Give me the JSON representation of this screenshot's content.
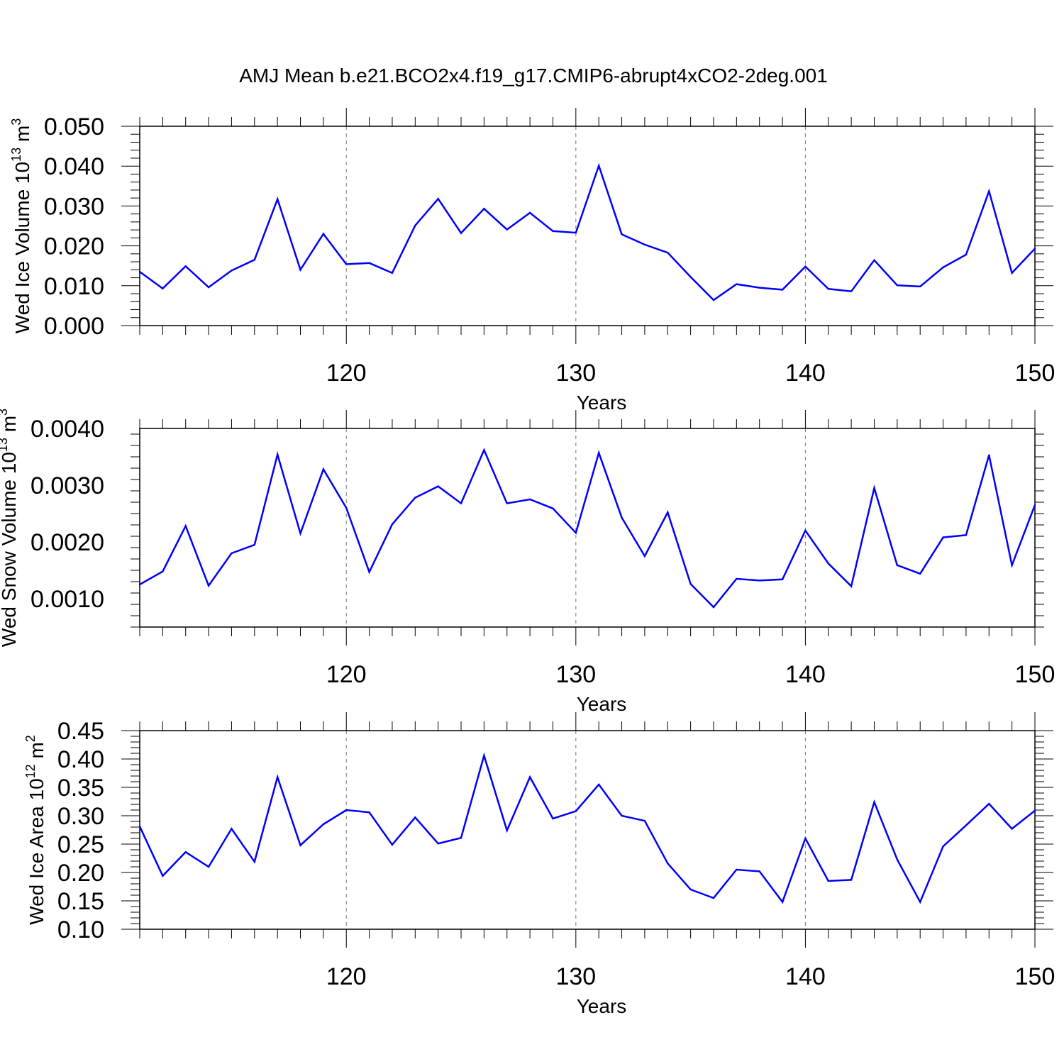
{
  "title": "AMJ Mean b.e21.BCO2x4.f19_g17.CMIP6-abrupt4xCO2-2deg.001",
  "chart_data": [
    {
      "type": "line",
      "title": "",
      "xlabel": "Years",
      "ylabel": {
        "main": "Wed Ice Volume 10",
        "exponent": "13",
        "unit": " m",
        "unit_exponent": "3"
      },
      "xlim": [
        111,
        150
      ],
      "ylim": [
        0.0,
        0.05
      ],
      "x_ticks": [
        "120",
        "130",
        "140",
        "150"
      ],
      "y_ticks": [
        "0.000",
        "0.010",
        "0.020",
        "0.030",
        "0.040",
        "0.050"
      ],
      "grid": "vertical dashed at major x ticks",
      "color": "#0000ff",
      "x": [
        111,
        112,
        113,
        114,
        115,
        116,
        117,
        118,
        119,
        120,
        121,
        122,
        123,
        124,
        125,
        126,
        127,
        128,
        129,
        130,
        131,
        132,
        133,
        134,
        135,
        136,
        137,
        138,
        139,
        140,
        141,
        142,
        143,
        144,
        145,
        146,
        147,
        148,
        149,
        150
      ],
      "values": [
        0.0135,
        0.0093,
        0.0149,
        0.0096,
        0.0138,
        0.0165,
        0.0317,
        0.014,
        0.023,
        0.0154,
        0.0157,
        0.0132,
        0.0251,
        0.0318,
        0.0232,
        0.0293,
        0.0241,
        0.0283,
        0.0237,
        0.0233,
        0.0401,
        0.0229,
        0.0203,
        0.0183,
        0.0122,
        0.0064,
        0.0104,
        0.0095,
        0.009,
        0.0148,
        0.0092,
        0.0086,
        0.0164,
        0.0101,
        0.0098,
        0.0146,
        0.0178,
        0.0337,
        0.0132,
        0.0193
      ]
    },
    {
      "type": "line",
      "title": "",
      "xlabel": "Years",
      "ylabel": {
        "main": "Wed Snow Volume 10",
        "exponent": "13",
        "unit": " m",
        "unit_exponent": "3"
      },
      "xlim": [
        111,
        150
      ],
      "ylim": [
        0.0005,
        0.004
      ],
      "x_ticks": [
        "120",
        "130",
        "140",
        "150"
      ],
      "y_ticks": [
        "0.0010",
        "0.0020",
        "0.0030",
        "0.0040"
      ],
      "grid": "vertical dashed at major x ticks",
      "color": "#0000ff",
      "x": [
        111,
        112,
        113,
        114,
        115,
        116,
        117,
        118,
        119,
        120,
        121,
        122,
        123,
        124,
        125,
        126,
        127,
        128,
        129,
        130,
        131,
        132,
        133,
        134,
        135,
        136,
        137,
        138,
        139,
        140,
        141,
        142,
        143,
        144,
        145,
        146,
        147,
        148,
        149,
        150
      ],
      "values": [
        0.00125,
        0.00148,
        0.00228,
        0.00123,
        0.0018,
        0.00195,
        0.00354,
        0.00215,
        0.00328,
        0.0026,
        0.00147,
        0.00231,
        0.00278,
        0.00298,
        0.00268,
        0.00362,
        0.00268,
        0.00275,
        0.00259,
        0.00216,
        0.00357,
        0.00243,
        0.00175,
        0.00252,
        0.00126,
        0.00085,
        0.00135,
        0.00132,
        0.00134,
        0.0022,
        0.00162,
        0.00122,
        0.00295,
        0.00159,
        0.00144,
        0.00208,
        0.00212,
        0.00353,
        0.00159,
        0.00265
      ]
    },
    {
      "type": "line",
      "title": "",
      "xlabel": "Years",
      "ylabel": {
        "main": "Wed Ice Area 10",
        "exponent": "12",
        "unit": " m",
        "unit_exponent": "2"
      },
      "xlim": [
        111,
        150
      ],
      "ylim": [
        0.1,
        0.45
      ],
      "x_ticks": [
        "120",
        "130",
        "140",
        "150"
      ],
      "y_ticks": [
        "0.10",
        "0.15",
        "0.20",
        "0.25",
        "0.30",
        "0.35",
        "0.40",
        "0.45"
      ],
      "grid": "vertical dashed at major x ticks",
      "color": "#0000ff",
      "x": [
        111,
        112,
        113,
        114,
        115,
        116,
        117,
        118,
        119,
        120,
        121,
        122,
        123,
        124,
        125,
        126,
        127,
        128,
        129,
        130,
        131,
        132,
        133,
        134,
        135,
        136,
        137,
        138,
        139,
        140,
        141,
        142,
        143,
        144,
        145,
        146,
        147,
        148,
        149,
        150
      ],
      "values": [
        0.281,
        0.194,
        0.236,
        0.21,
        0.277,
        0.219,
        0.368,
        0.248,
        0.285,
        0.31,
        0.306,
        0.249,
        0.297,
        0.251,
        0.261,
        0.406,
        0.274,
        0.368,
        0.295,
        0.308,
        0.355,
        0.3,
        0.291,
        0.216,
        0.17,
        0.155,
        0.205,
        0.202,
        0.148,
        0.26,
        0.185,
        0.187,
        0.324,
        0.223,
        0.148,
        0.246,
        0.283,
        0.321,
        0.277,
        0.309
      ]
    }
  ]
}
